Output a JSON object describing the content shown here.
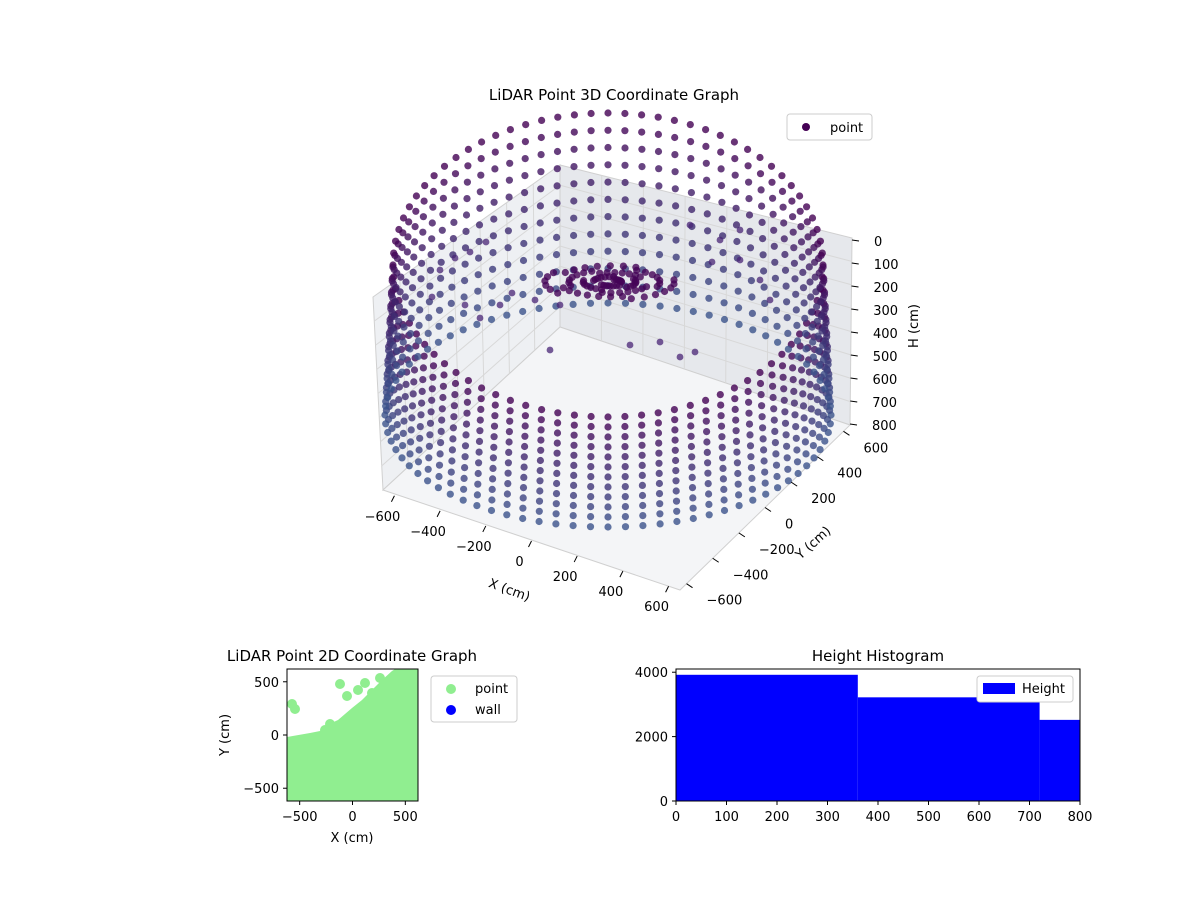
{
  "chart_data": [
    {
      "type": "scatter",
      "title": "LiDAR Point 3D Coordinate Graph",
      "xlabel": "X (cm)",
      "ylabel": "Y (cm)",
      "zlabel": "H (cm)",
      "xlim": [
        -650,
        650
      ],
      "ylim": [
        -650,
        650
      ],
      "zlim": [
        0,
        800
      ],
      "z_inverted": true,
      "x_ticks": [
        "−600",
        "−400",
        "−200",
        "0",
        "200",
        "400",
        "600"
      ],
      "y_ticks": [
        "−600",
        "−400",
        "−200",
        "0",
        "200",
        "400",
        "600"
      ],
      "z_ticks": [
        "0",
        "100",
        "200",
        "300",
        "400",
        "500",
        "600",
        "700",
        "800"
      ],
      "legend": [
        "point"
      ],
      "legend_position": "upper right",
      "colormap": "viridis",
      "grid": true,
      "series": [
        {
          "name": "point",
          "color": "#440154",
          "shape": "ring wall of points around the sensor, heights 0–800 cm, with a dense cluster and sparse points inside"
        }
      ]
    },
    {
      "type": "scatter",
      "title": "LiDAR Point 2D Coordinate Graph",
      "xlabel": "X (cm)",
      "ylabel": "Y (cm)",
      "xlim": [
        -620,
        620
      ],
      "ylim": [
        -620,
        620
      ],
      "x_ticks": [
        "−500",
        "0",
        "500"
      ],
      "y_ticks": [
        "−500",
        "0",
        "500"
      ],
      "legend_position": "outside right",
      "series": [
        {
          "name": "point",
          "color": "#90ee90"
        },
        {
          "name": "wall",
          "color": "#0000ff"
        }
      ]
    },
    {
      "type": "bar",
      "title": "Height Histogram",
      "xlim": [
        0,
        800
      ],
      "ylim": [
        0,
        4100
      ],
      "x_ticks": [
        "0",
        "100",
        "200",
        "300",
        "400",
        "500",
        "600",
        "700",
        "800"
      ],
      "y_ticks": [
        "0",
        "2000",
        "4000"
      ],
      "legend_position": "upper right",
      "bins": [
        {
          "from": 0,
          "to": 360,
          "count": 3920
        },
        {
          "from": 360,
          "to": 720,
          "count": 3220
        },
        {
          "from": 720,
          "to": 800,
          "count": 2520
        }
      ],
      "series": [
        {
          "name": "Height",
          "color": "#0000ff"
        }
      ]
    }
  ]
}
